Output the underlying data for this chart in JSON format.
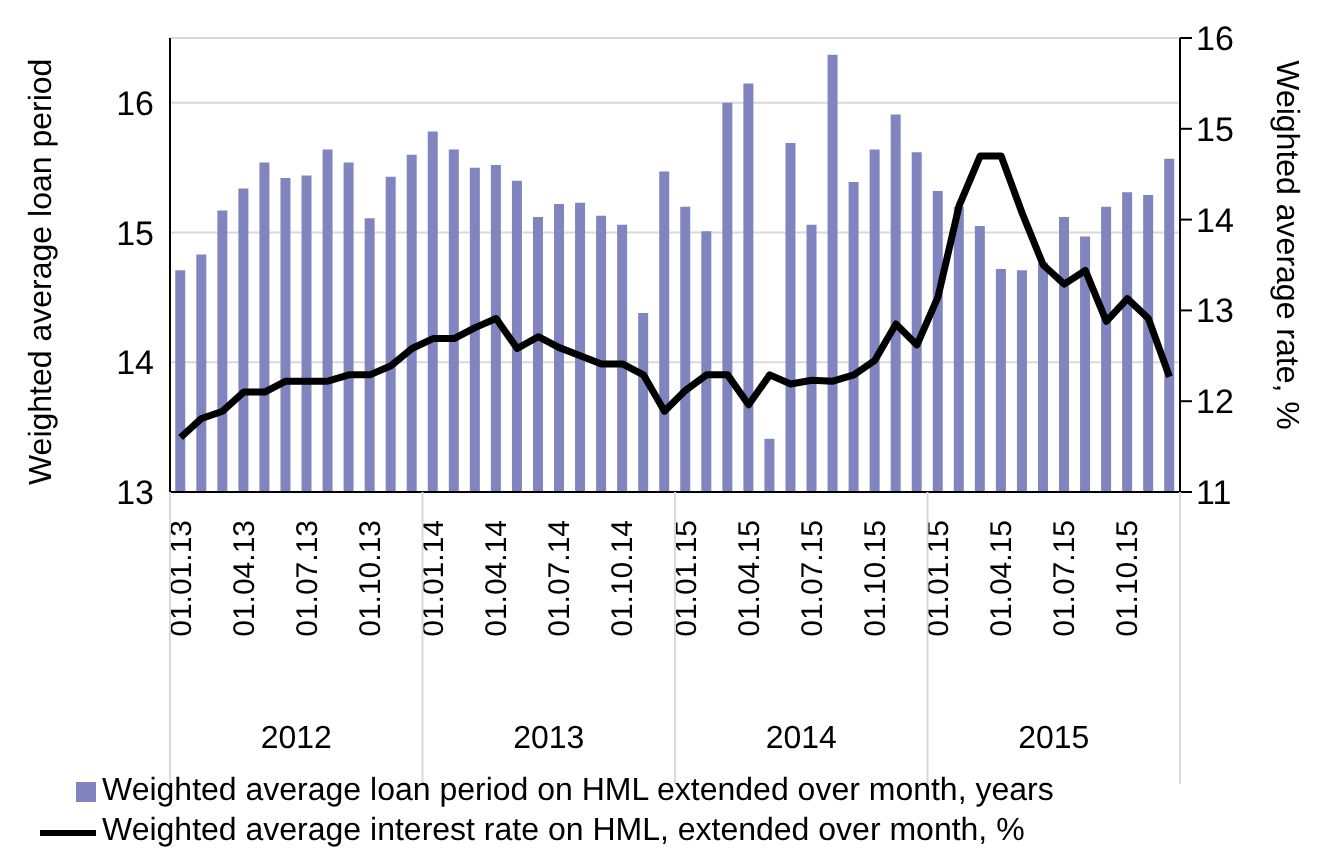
{
  "chart_data": {
    "type": "bar",
    "ylabel": "Weighted average loan period",
    "y2label": "Weighted average rate, %",
    "categories": [
      "01.01.13",
      null,
      null,
      "01.04.13",
      null,
      null,
      "01.07.13",
      null,
      null,
      "01.10.13",
      null,
      null,
      "01.01.14",
      null,
      null,
      "01.04.14",
      null,
      null,
      "01.07.14",
      null,
      null,
      "01.10.14",
      null,
      null,
      "01.01.15",
      null,
      null,
      "01.04.15",
      null,
      null,
      "01.07.15",
      null,
      null,
      "01.10.15",
      null,
      null,
      "01.01.15",
      null,
      null,
      "01.04.15",
      null,
      null,
      "01.07.15",
      null,
      null,
      "01.10.15",
      null,
      null
    ],
    "series": [
      {
        "name": "Weighted average loan period on HML extended over month, years",
        "color": "#8085c0",
        "values": [
          14.71,
          14.83,
          15.17,
          15.34,
          15.54,
          15.42,
          15.44,
          15.64,
          15.54,
          15.11,
          15.43,
          15.6,
          15.78,
          15.64,
          15.5,
          15.52,
          15.4,
          15.12,
          15.22,
          15.23,
          15.13,
          15.06,
          14.38,
          15.47,
          15.2,
          15.01,
          16.0,
          16.15,
          13.41,
          15.69,
          15.06,
          16.37,
          15.39,
          15.64,
          15.91,
          15.62,
          15.32,
          15.2,
          15.05,
          14.72,
          14.71,
          14.77,
          15.12,
          14.97,
          15.2,
          15.31,
          15.29,
          15.57
        ]
      },
      {
        "type": "line",
        "axis": "y2",
        "name": "Weighted average interest rate on HML, extended over month, %",
        "color": "#000000",
        "values": [
          11.6,
          11.81,
          11.89,
          12.1,
          12.1,
          12.22,
          12.22,
          12.22,
          12.29,
          12.29,
          12.39,
          12.58,
          12.69,
          12.69,
          12.81,
          12.91,
          12.58,
          12.71,
          12.59,
          12.5,
          12.41,
          12.41,
          12.29,
          11.89,
          12.12,
          12.29,
          12.29,
          11.96,
          12.29,
          12.19,
          12.23,
          12.22,
          12.29,
          12.45,
          12.85,
          12.62,
          13.15,
          14.15,
          14.7,
          14.7,
          14.07,
          13.5,
          13.29,
          13.44,
          12.88,
          13.13,
          12.91,
          12.27
        ]
      }
    ],
    "ylim": [
      13,
      16.5
    ],
    "yticks": [
      13,
      14,
      15,
      16
    ],
    "y2lim": [
      11,
      16
    ],
    "y2ticks": [
      11,
      12,
      13,
      14,
      15,
      16
    ],
    "grid": "y",
    "legend": "bottom",
    "marker": "none",
    "line_style": "solid",
    "annotations": [
      "2012",
      "2013",
      "2014",
      "2015"
    ]
  }
}
